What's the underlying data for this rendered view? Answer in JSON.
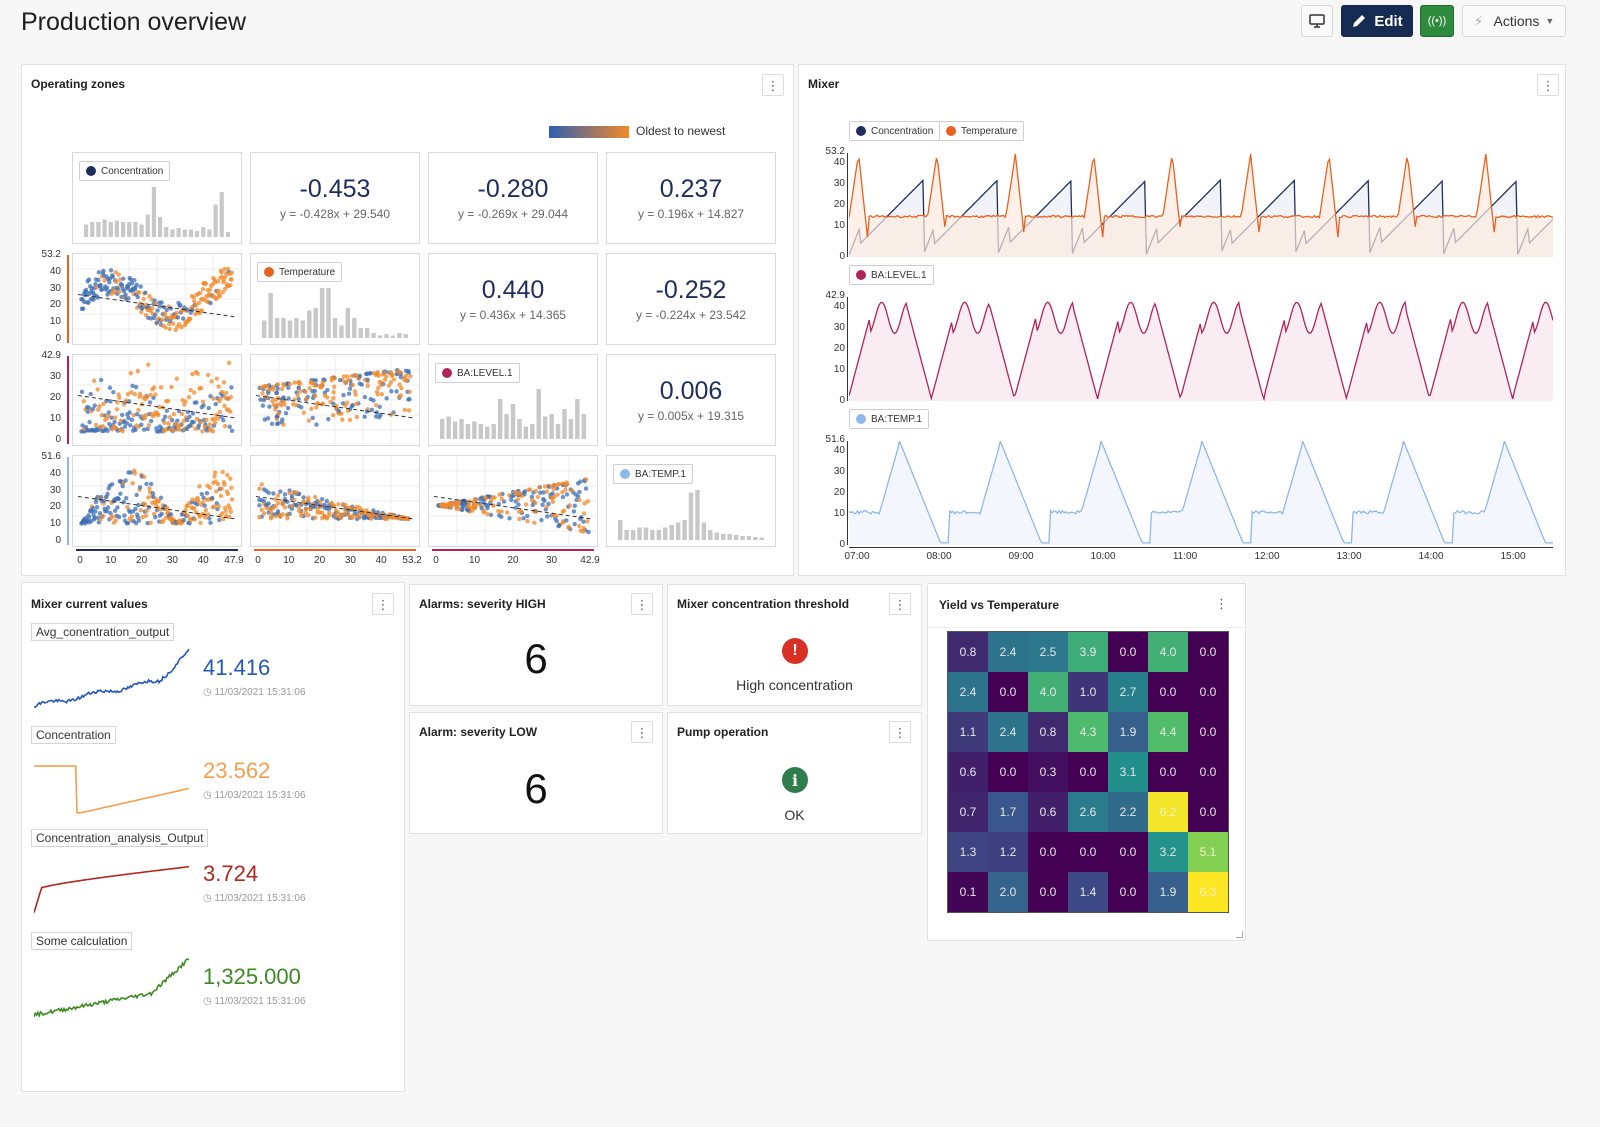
{
  "page": {
    "title": "Production overview"
  },
  "toolbar": {
    "edit_label": "Edit",
    "actions_label": "Actions",
    "colors": {
      "edit": "#162b52",
      "live": "#2e8b3d"
    }
  },
  "operating_zones": {
    "title": "Operating zones",
    "legend_label": "Oldest to newest",
    "series": [
      {
        "name": "Concentration",
        "color": "#1f2d5c"
      },
      {
        "name": "Temperature",
        "color": "#e8621f"
      },
      {
        "name": "BA:LEVEL.1",
        "color": "#b0245c"
      },
      {
        "name": "BA:TEMP.1",
        "color": "#8fb8e8"
      }
    ],
    "correlations": [
      {
        "value": "-0.453",
        "eq": "y = -0.428x + 29.540"
      },
      {
        "value": "-0.280",
        "eq": "y = -0.269x + 29.044"
      },
      {
        "value": "0.237",
        "eq": "y = 0.196x + 14.827"
      },
      {
        "value": "0.440",
        "eq": "y = 0.436x + 14.365"
      },
      {
        "value": "-0.252",
        "eq": "y = -0.224x + 23.542"
      },
      {
        "value": "0.006",
        "eq": "y = 0.005x + 19.315"
      }
    ],
    "row_axes": [
      {
        "ticks": [
          "53.2",
          "40",
          "30",
          "20",
          "10",
          "0"
        ]
      },
      {
        "ticks": [
          "42.9",
          "30",
          "20",
          "10",
          "0"
        ]
      },
      {
        "ticks": [
          "51.6",
          "40",
          "30",
          "20",
          "10",
          "0"
        ]
      }
    ],
    "col_axes": [
      {
        "ticks": [
          "0",
          "10",
          "20",
          "30",
          "40",
          "47.9"
        ]
      },
      {
        "ticks": [
          "0",
          "10",
          "20",
          "30",
          "40",
          "53.2"
        ]
      },
      {
        "ticks": [
          "0",
          "10",
          "20",
          "30",
          "42.9"
        ]
      }
    ]
  },
  "mixer": {
    "title": "Mixer",
    "charts": [
      {
        "legend": [
          {
            "name": "Concentration",
            "color": "#1f2d5c"
          },
          {
            "name": "Temperature",
            "color": "#e8621f"
          }
        ],
        "ymax": "53.2",
        "ticks": [
          "40",
          "30",
          "20",
          "10",
          "0"
        ]
      },
      {
        "legend": [
          {
            "name": "BA:LEVEL.1",
            "color": "#b0245c"
          }
        ],
        "ymax": "42.9",
        "ticks": [
          "40",
          "30",
          "20",
          "10",
          "0"
        ]
      },
      {
        "legend": [
          {
            "name": "BA:TEMP.1",
            "color": "#8fb8e8"
          }
        ],
        "ymax": "51.6",
        "ticks": [
          "40",
          "30",
          "20",
          "10",
          "0"
        ]
      }
    ],
    "x_ticks": [
      "07:00",
      "08:00",
      "09:00",
      "10:00",
      "11:00",
      "12:00",
      "13:00",
      "14:00",
      "15:00"
    ]
  },
  "current_values": {
    "title": "Mixer current values",
    "items": [
      {
        "label": "Avg_conentration_output",
        "value": "41.416",
        "timestamp": "11/03/2021 15:31:06",
        "color": "#2458b8"
      },
      {
        "label": "Concentration",
        "value": "23.562",
        "timestamp": "11/03/2021 15:31:06",
        "color": "#f2a04a"
      },
      {
        "label": "Concentration_analysis_Output",
        "value": "3.724",
        "timestamp": "11/03/2021 15:31:06",
        "color": "#b3261e"
      },
      {
        "label": "Some calculation",
        "value": "1,325.000",
        "timestamp": "11/03/2021 15:31:06",
        "color": "#3c8a22"
      }
    ]
  },
  "alarms_high": {
    "title": "Alarms: severity HIGH",
    "count": "6"
  },
  "alarms_low": {
    "title": "Alarm: severity LOW",
    "count": "6"
  },
  "threshold": {
    "title": "Mixer concentration threshold",
    "status": "High concentration",
    "color": "#d93025"
  },
  "pump": {
    "title": "Pump operation",
    "status": "OK",
    "color": "#2e7d4a"
  },
  "heatmap": {
    "title": "Yield vs Temperature",
    "chart_data": {
      "type": "heatmap",
      "values": [
        [
          "0.8",
          "2.4",
          "2.5",
          "3.9",
          "0.0",
          "4.0",
          "0.0"
        ],
        [
          "2.4",
          "0.0",
          "4.0",
          "1.0",
          "2.7",
          "0.0",
          "0.0"
        ],
        [
          "1.1",
          "2.4",
          "0.8",
          "4.3",
          "1.9",
          "4.4",
          "0.0"
        ],
        [
          "0.6",
          "0.0",
          "0.3",
          "0.0",
          "3.1",
          "0.0",
          "0.0"
        ],
        [
          "0.7",
          "1.7",
          "0.6",
          "2.6",
          "2.2",
          "6.2",
          "0.0"
        ],
        [
          "1.3",
          "1.2",
          "0.0",
          "0.0",
          "0.0",
          "3.2",
          "5.1"
        ],
        [
          "0.1",
          "2.0",
          "0.0",
          "1.4",
          "0.0",
          "1.9",
          "6.3"
        ]
      ]
    }
  }
}
